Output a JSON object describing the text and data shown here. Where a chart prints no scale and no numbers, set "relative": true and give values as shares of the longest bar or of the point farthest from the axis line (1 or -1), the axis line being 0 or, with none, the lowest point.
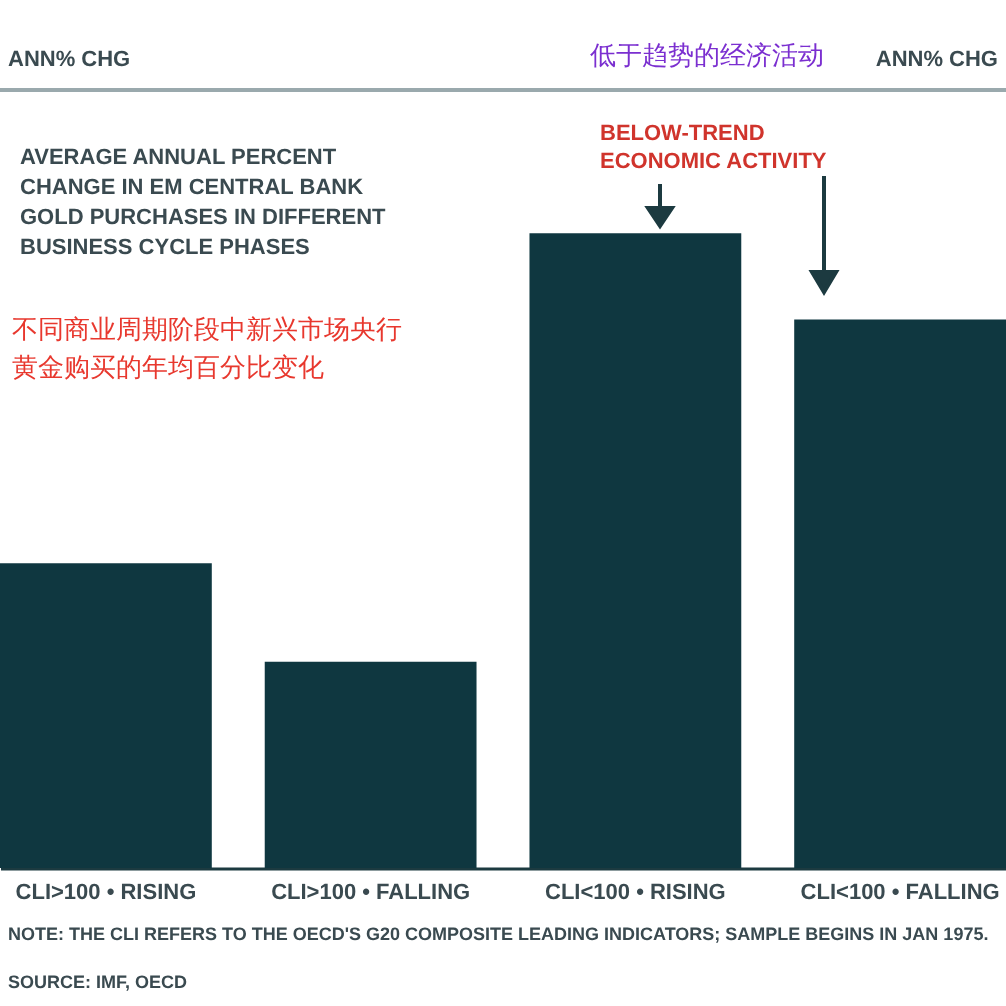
{
  "chart_data": {
    "type": "bar",
    "relative": true,
    "title": "AVERAGE ANNUAL PERCENT CHANGE IN EM CENTRAL BANK GOLD PURCHASES IN DIFFERENT BUSINESS CYCLE PHASES",
    "subtitle": "不同商业周期阶段中新兴市场央行黄金购买的年均百分比变化",
    "annotations": [
      "ANN% CHG",
      "ANN% CHG",
      "BELOW-TREND ECONOMIC ACTIVITY",
      "低于趋势的经济活动",
      "NOTE: THE CLI REFERS TO THE OECD'S G20 COMPOSITE LEADING INDICATORS; SAMPLE BEGINS IN JAN 1975.",
      "SOURCE: IMF, OECD"
    ],
    "categories": [
      "CLI>100 • RISING",
      "CLI>100 • FALLING",
      "CLI<100 • RISING",
      "CLI<100 • FALLING"
    ],
    "values": [
      0.48,
      0.325,
      1,
      0.864
    ],
    "color": "#0f3740"
  }
}
